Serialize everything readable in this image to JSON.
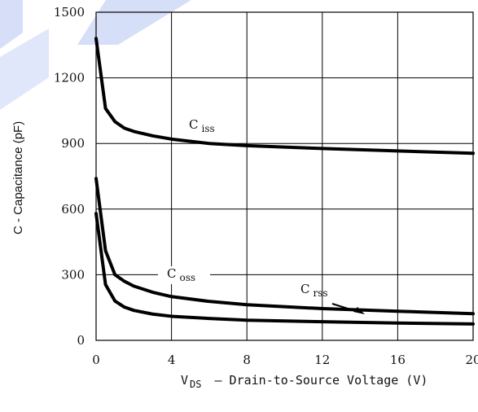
{
  "chart_data": {
    "type": "line",
    "xlabel_main": "V",
    "xlabel_sub": "DS",
    "xlabel_rest": "–  Drain-to-Source Voltage (V)",
    "ylabel": "C  -  Capacitance (pF)",
    "xlim": [
      0,
      20
    ],
    "ylim": [
      0,
      1500
    ],
    "xticks": [
      0,
      4,
      8,
      12,
      16,
      20
    ],
    "yticks": [
      0,
      300,
      600,
      900,
      1200,
      1500
    ],
    "grid": true,
    "series": [
      {
        "name": "C iss",
        "label_main": "C",
        "label_sub": "iss",
        "points": [
          [
            0,
            1380
          ],
          [
            0.5,
            1060
          ],
          [
            1,
            1000
          ],
          [
            1.5,
            970
          ],
          [
            2,
            955
          ],
          [
            3,
            935
          ],
          [
            4,
            920
          ],
          [
            6,
            900
          ],
          [
            8,
            890
          ],
          [
            12,
            877
          ],
          [
            16,
            866
          ],
          [
            20,
            855
          ]
        ]
      },
      {
        "name": "C oss",
        "label_main": "C",
        "label_sub": "oss",
        "points": [
          [
            0,
            740
          ],
          [
            0.5,
            410
          ],
          [
            1,
            300
          ],
          [
            1.5,
            270
          ],
          [
            2,
            248
          ],
          [
            3,
            220
          ],
          [
            4,
            200
          ],
          [
            6,
            178
          ],
          [
            8,
            163
          ],
          [
            12,
            145
          ],
          [
            16,
            133
          ],
          [
            20,
            122
          ]
        ]
      },
      {
        "name": "C rss",
        "label_main": "C",
        "label_sub": "rss",
        "points": [
          [
            0,
            580
          ],
          [
            0.5,
            255
          ],
          [
            1,
            180
          ],
          [
            1.5,
            152
          ],
          [
            2,
            137
          ],
          [
            3,
            120
          ],
          [
            4,
            110
          ],
          [
            6,
            100
          ],
          [
            8,
            92
          ],
          [
            12,
            85
          ],
          [
            16,
            79
          ],
          [
            20,
            75
          ]
        ]
      }
    ]
  }
}
